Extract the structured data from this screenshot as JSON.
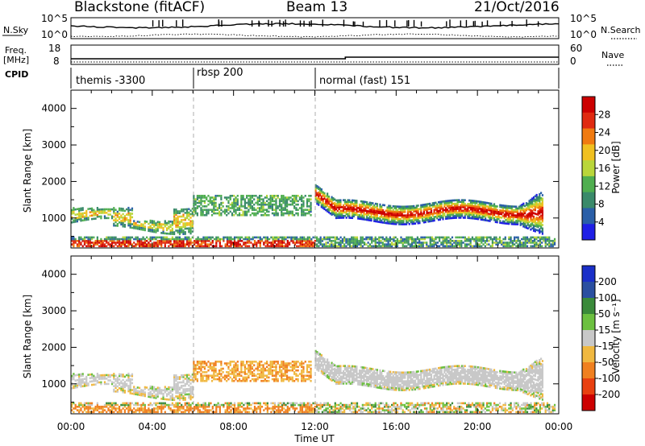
{
  "header": {
    "radar": "Blackstone (fitACF)",
    "beam": "Beam 13",
    "date": "21/Oct/2016"
  },
  "noise_panel": {
    "left_label": "N.Sky",
    "right_label": "N.Search",
    "ticks_left": [
      "10^5",
      "10^0"
    ],
    "ticks_right": [
      "10^5",
      "10^0"
    ]
  },
  "freq_panel": {
    "left_label_1": "Freq.",
    "left_label_2": "[MHz]",
    "right_label": "Nave",
    "ticks_left": [
      "18",
      "8"
    ],
    "ticks_right": [
      "60",
      "0"
    ]
  },
  "cpid_panel": {
    "label": "CPID",
    "segments": [
      {
        "name": "themis -3300",
        "start_hour": 0,
        "end_hour": 6
      },
      {
        "name": "rbsp 200",
        "start_hour": 6,
        "end_hour": 12
      },
      {
        "name": "normal (fast) 151",
        "start_hour": 12,
        "end_hour": 24
      }
    ]
  },
  "x_axis": {
    "label": "Time UT",
    "ticks": [
      "00:00",
      "04:00",
      "08:00",
      "12:00",
      "16:00",
      "20:00",
      "00:00"
    ]
  },
  "colors": {
    "power": [
      "#1f1fe6",
      "#2a5fa8",
      "#3a8a6a",
      "#4fae4f",
      "#b9d63a",
      "#f0c020",
      "#f07a10",
      "#e02a10",
      "#cc0000"
    ],
    "velocity": [
      "#cc0000",
      "#e84010",
      "#f08020",
      "#f0b840",
      "#c8c8c8",
      "#6cc040",
      "#3a8a3a",
      "#2a4fa0",
      "#1a2fc8"
    ]
  },
  "chart_data": [
    {
      "type": "heatmap",
      "title": "",
      "xlabel": "Time UT",
      "ylabel": "Slant Range [km]",
      "xlim": [
        0,
        24
      ],
      "ylim": [
        180,
        4500
      ],
      "yticks": [
        "1000",
        "2000",
        "3000",
        "4000"
      ],
      "colorbar": {
        "label": "Power [dB]",
        "ticks": [
          "4",
          "8",
          "12",
          "16",
          "20",
          "24",
          "28"
        ],
        "range": [
          0,
          32
        ]
      },
      "features": [
        {
          "desc": "near-range band",
          "t_start": 0.0,
          "t_end": 23.8,
          "range_low": 200,
          "range_high": 450,
          "peak_db": 28
        },
        {
          "desc": "themis echo region",
          "t_start": 0.0,
          "t_end": 6.0,
          "range_low": 600,
          "range_high": 1300,
          "peak_db": 20
        },
        {
          "desc": "rbsp echo band",
          "t_start": 6.0,
          "t_end": 11.8,
          "range_low": 1050,
          "range_high": 1600,
          "peak_db": 14
        },
        {
          "desc": "normal-mode main echo",
          "t_start": 12.0,
          "t_end": 23.2,
          "range_low": 850,
          "range_high": 2000,
          "peak_db": 30
        }
      ]
    },
    {
      "type": "heatmap",
      "title": "",
      "xlabel": "Time UT",
      "ylabel": "Slant Range [km]",
      "xlim": [
        0,
        24
      ],
      "ylim": [
        180,
        4500
      ],
      "yticks": [
        "1000",
        "2000",
        "3000",
        "4000"
      ],
      "colorbar": {
        "label": "Velocity [m s⁻¹]",
        "ticks": [
          "200",
          "100",
          "50",
          "15",
          "-15",
          "-50",
          "-100",
          "-200"
        ],
        "range": [
          -250,
          250
        ]
      },
      "features": [
        {
          "desc": "near-range band",
          "t_start": 0.0,
          "t_end": 23.8,
          "range_low": 200,
          "range_high": 450,
          "velocity": -60
        },
        {
          "desc": "themis echo region",
          "t_start": 0.0,
          "t_end": 6.0,
          "range_low": 600,
          "range_high": 1300,
          "velocity": -5
        },
        {
          "desc": "rbsp echo band",
          "t_start": 6.0,
          "t_end": 11.8,
          "range_low": 1050,
          "range_high": 1600,
          "velocity": -45
        },
        {
          "desc": "normal-mode main echo",
          "t_start": 12.0,
          "t_end": 23.2,
          "range_low": 850,
          "range_high": 2000,
          "velocity": 0
        }
      ]
    }
  ]
}
